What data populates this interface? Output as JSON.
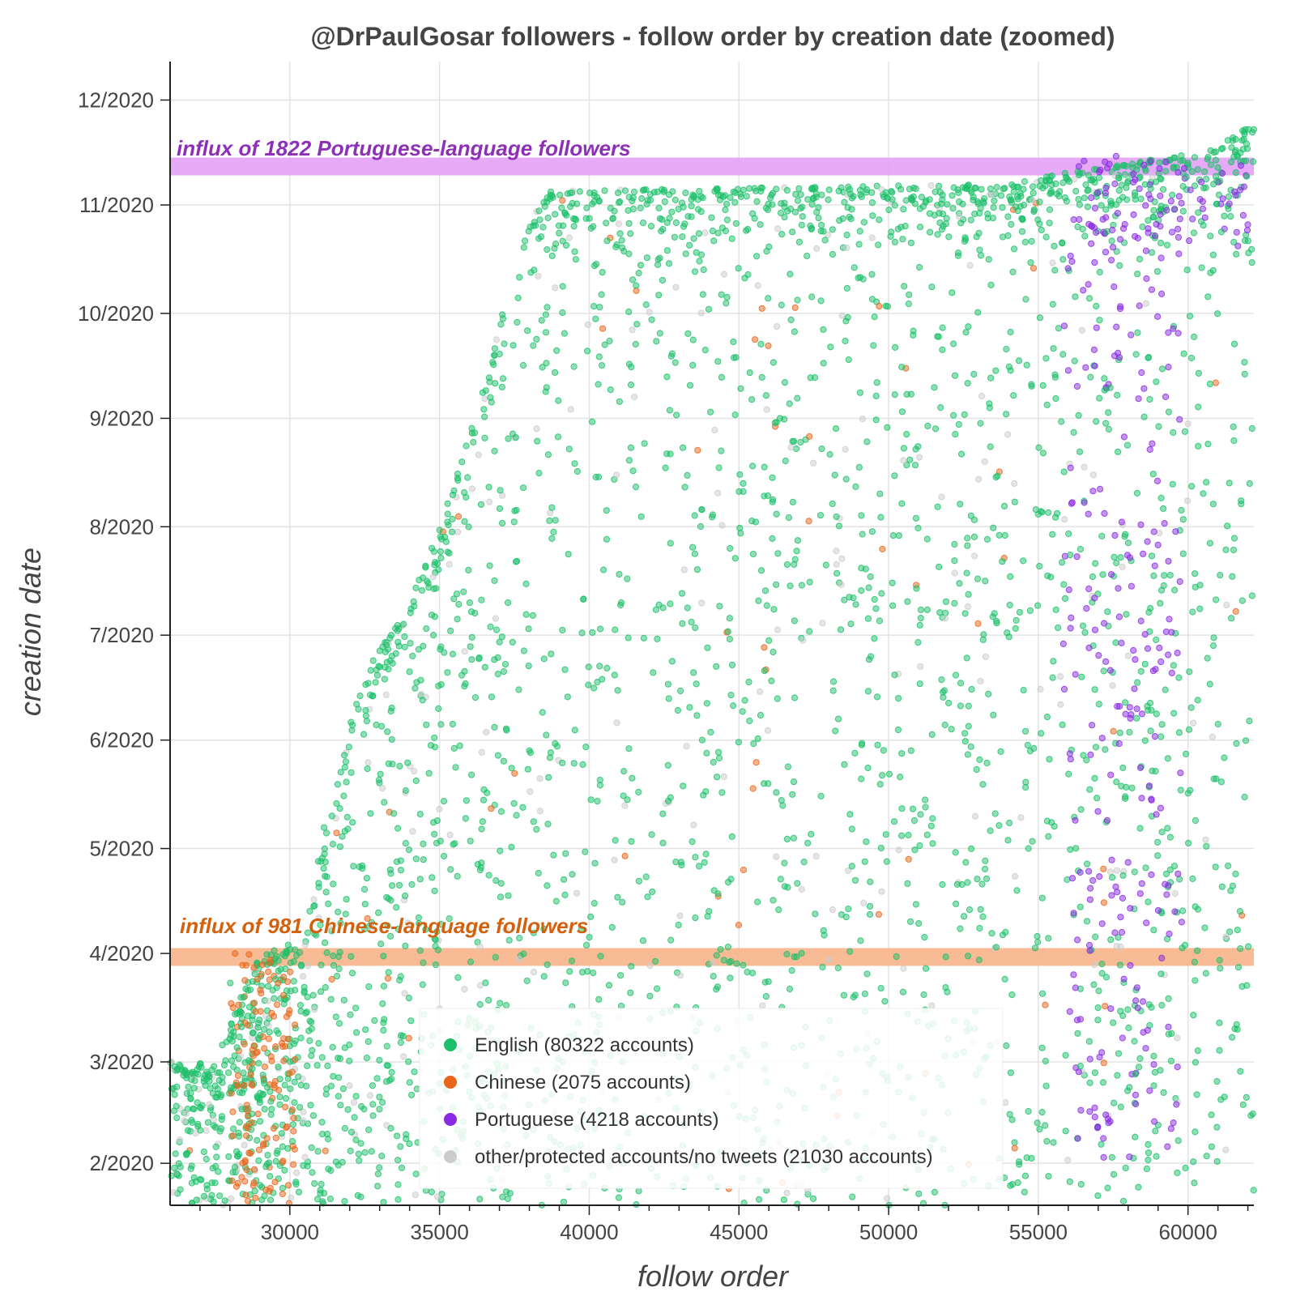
{
  "chart_data": {
    "type": "scatter",
    "title": "@DrPaulGosar followers - follow order by creation date (zoomed)",
    "xlabel": "follow order",
    "ylabel": "creation date",
    "xlim": [
      26000,
      62200
    ],
    "ylim": [
      "2020-01-20",
      "2020-12-12"
    ],
    "x_ticks": [
      30000,
      35000,
      40000,
      45000,
      50000,
      55000,
      60000
    ],
    "x_tick_labels": [
      "30000",
      "35000",
      "40000",
      "45000",
      "50000",
      "55000",
      "60000"
    ],
    "y_ticks": [
      "2020-02-01",
      "2020-03-01",
      "2020-04-01",
      "2020-05-01",
      "2020-06-01",
      "2020-07-01",
      "2020-08-01",
      "2020-09-01",
      "2020-10-01",
      "2020-11-01",
      "2020-12-01"
    ],
    "y_tick_labels": [
      "2/2020",
      "3/2020",
      "4/2020",
      "5/2020",
      "6/2020",
      "7/2020",
      "8/2020",
      "9/2020",
      "10/2020",
      "11/2020",
      "12/2020"
    ],
    "grid": true,
    "legend_position": "bottom-center",
    "series": [
      {
        "name": "English (80322 accounts)",
        "color": "#1dbf6a"
      },
      {
        "name": "Chinese (2075 accounts)",
        "color": "#e8651a"
      },
      {
        "name": "Portuguese (4218 accounts)",
        "color": "#8a2be2"
      },
      {
        "name": "other/protected accounts/no tweets (21030 accounts)",
        "color": "#cccccc"
      }
    ],
    "annotations": [
      {
        "text": "influx of 1822 Portuguese-language followers",
        "date": "2020-11-12",
        "color": "#8e2fb8",
        "band_color": "#e3a1f5"
      },
      {
        "text": "influx of 981 Chinese-language followers",
        "date": "2020-03-31",
        "color": "#d4600c",
        "band_color": "#f8b48a"
      }
    ]
  }
}
